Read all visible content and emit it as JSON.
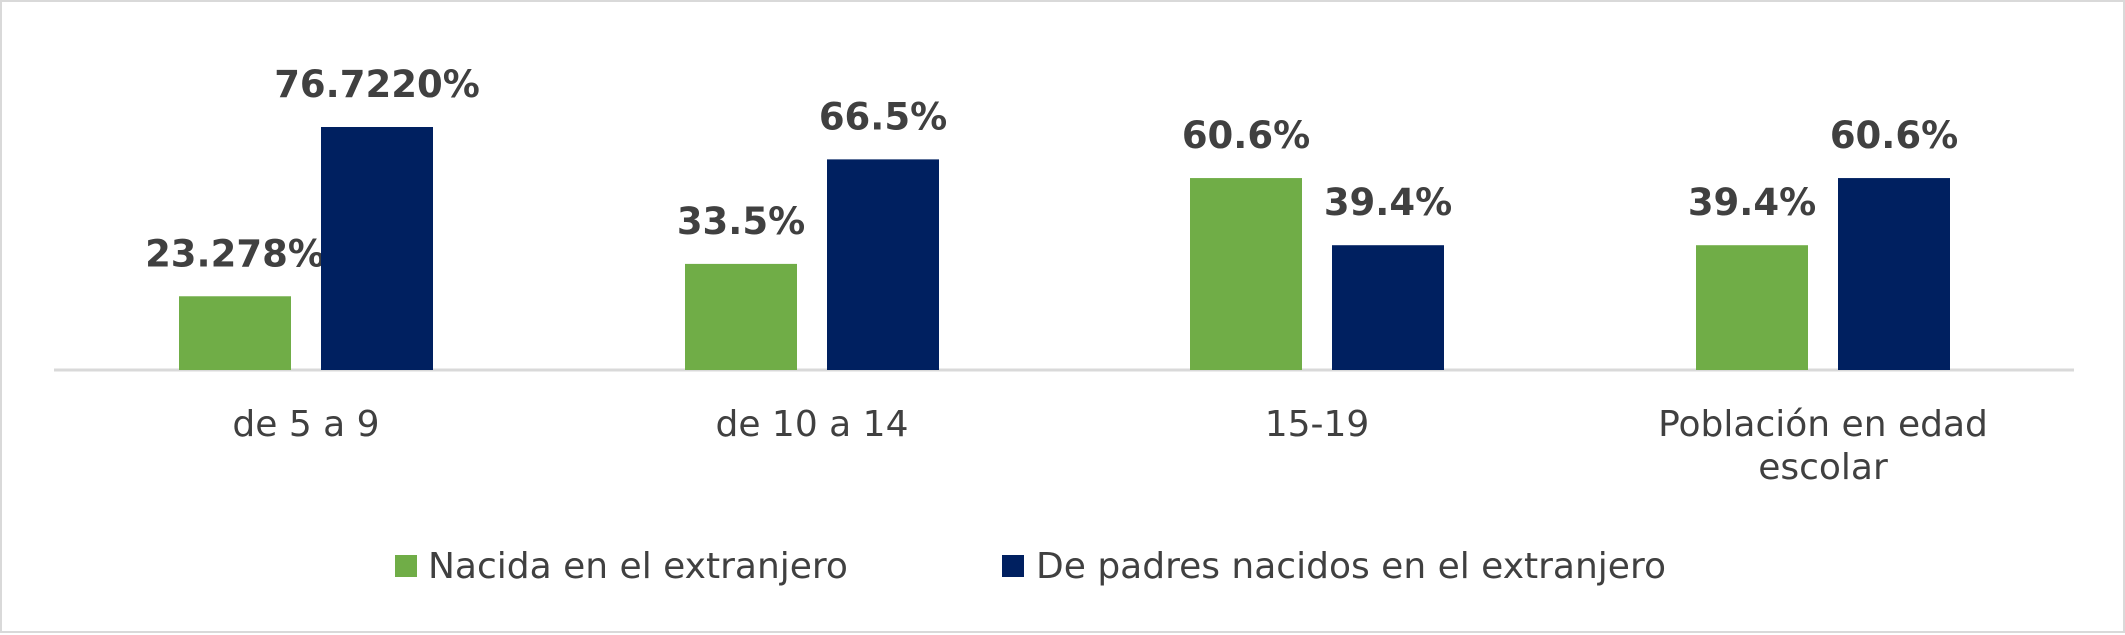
{
  "chart_data": {
    "type": "bar",
    "categories": [
      [
        "de 5 a 9"
      ],
      [
        "de 10 a 14"
      ],
      [
        "15-19"
      ],
      [
        "Población en edad",
        "escolar"
      ]
    ],
    "series": [
      {
        "name": "Nacida en el extranjero",
        "color": "#70ad47",
        "values": [
          23.278,
          33.5,
          60.6,
          39.4
        ],
        "labels": [
          "23.278%",
          "33.5%",
          "60.6%",
          "39.4%"
        ]
      },
      {
        "name": "De padres nacidos en el extranjero",
        "color": "#002060",
        "values": [
          76.722,
          66.5,
          39.4,
          60.6
        ],
        "labels": [
          "76.7220%",
          "66.5%",
          "39.4%",
          "60.6%"
        ]
      }
    ],
    "ylim": [
      0,
      80
    ],
    "grid": false,
    "legend": "bottom"
  }
}
